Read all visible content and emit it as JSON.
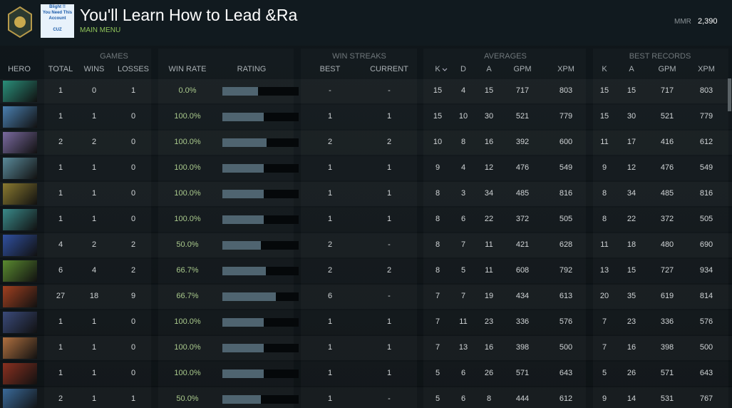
{
  "header": {
    "title": "You'll Learn How to Lead &Ra",
    "subtitle": "MAIN MENU",
    "avatar_text": [
      "Blight !!",
      "You Need This Account",
      "CUZ"
    ],
    "mmr_label": "MMR",
    "mmr_value": "2,390"
  },
  "table": {
    "groups": [
      "GAMES",
      "WIN STREAKS",
      "AVERAGES",
      "BEST RECORDS"
    ],
    "columns": [
      "HERO",
      "TOTAL",
      "WINS",
      "LOSSES",
      "WIN RATE",
      "RATING",
      "BEST",
      "CURRENT",
      "K",
      "D",
      "A",
      "GPM",
      "XPM",
      "K",
      "A",
      "GPM",
      "XPM"
    ],
    "rows": [
      [
        1,
        0,
        1,
        "0.0%",
        "-",
        "-",
        15,
        4,
        15,
        717,
        803,
        15,
        15,
        717,
        803
      ],
      [
        1,
        1,
        0,
        "100.0%",
        1,
        1,
        15,
        10,
        30,
        521,
        779,
        15,
        30,
        521,
        779
      ],
      [
        2,
        2,
        0,
        "100.0%",
        2,
        2,
        10,
        8,
        16,
        392,
        600,
        11,
        17,
        416,
        612
      ],
      [
        1,
        1,
        0,
        "100.0%",
        1,
        1,
        9,
        4,
        12,
        476,
        549,
        9,
        12,
        476,
        549
      ],
      [
        1,
        1,
        0,
        "100.0%",
        1,
        1,
        8,
        3,
        34,
        485,
        816,
        8,
        34,
        485,
        816
      ],
      [
        1,
        1,
        0,
        "100.0%",
        1,
        1,
        8,
        6,
        22,
        372,
        505,
        8,
        22,
        372,
        505
      ],
      [
        4,
        2,
        2,
        "50.0%",
        2,
        "-",
        8,
        7,
        11,
        421,
        628,
        11,
        18,
        480,
        690
      ],
      [
        6,
        4,
        2,
        "66.7%",
        2,
        2,
        8,
        5,
        11,
        608,
        792,
        13,
        15,
        727,
        934
      ],
      [
        27,
        18,
        9,
        "66.7%",
        6,
        "-",
        7,
        7,
        19,
        434,
        613,
        20,
        35,
        619,
        814
      ],
      [
        1,
        1,
        0,
        "100.0%",
        1,
        1,
        7,
        11,
        23,
        336,
        576,
        7,
        23,
        336,
        576
      ],
      [
        1,
        1,
        0,
        "100.0%",
        1,
        1,
        7,
        13,
        16,
        398,
        500,
        7,
        16,
        398,
        500
      ],
      [
        1,
        1,
        0,
        "100.0%",
        1,
        1,
        5,
        6,
        26,
        571,
        643,
        5,
        26,
        571,
        643
      ],
      [
        2,
        1,
        1,
        "50.0%",
        1,
        "-",
        5,
        6,
        8,
        444,
        612,
        9,
        14,
        531,
        767
      ]
    ],
    "ratings": [
      47,
      54,
      58,
      54,
      54,
      54,
      50,
      57,
      70,
      54,
      54,
      54,
      50
    ]
  }
}
